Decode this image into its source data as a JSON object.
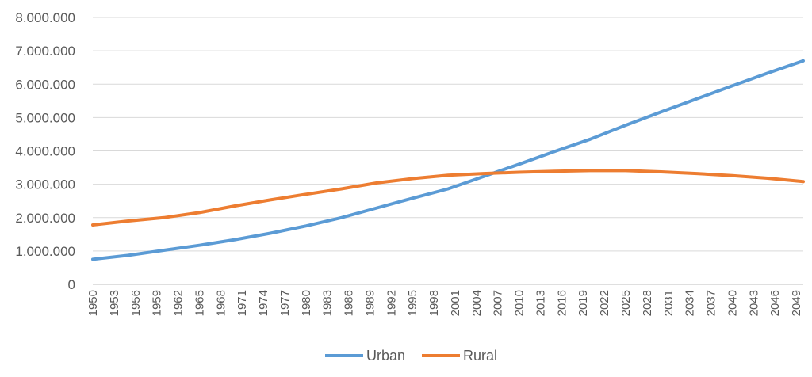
{
  "chart_data": {
    "type": "line",
    "title": "",
    "xlabel": "",
    "ylabel": "",
    "x_start": 1950,
    "x_end": 2050,
    "x_tick_labels": [
      "1950",
      "1953",
      "1956",
      "1959",
      "1962",
      "1965",
      "1968",
      "1971",
      "1974",
      "1977",
      "1980",
      "1983",
      "1986",
      "1989",
      "1992",
      "1995",
      "1998",
      "2001",
      "2004",
      "2007",
      "2010",
      "2013",
      "2016",
      "2019",
      "2022",
      "2025",
      "2028",
      "2031",
      "2034",
      "2037",
      "2040",
      "2043",
      "2046",
      "2049"
    ],
    "y_ticks": [
      0,
      1000000,
      2000000,
      3000000,
      4000000,
      5000000,
      6000000,
      7000000,
      8000000
    ],
    "y_tick_labels": [
      "0",
      "1.000.000",
      "2.000.000",
      "3.000.000",
      "4.000.000",
      "5.000.000",
      "6.000.000",
      "7.000.000",
      "8.000.000"
    ],
    "ylim": [
      0,
      8000000
    ],
    "grid": "horizontal",
    "legend_position": "bottom-center",
    "series": [
      {
        "name": "Urban",
        "color": "#5b9bd5",
        "points": [
          [
            1950,
            750000
          ],
          [
            1955,
            870000
          ],
          [
            1960,
            1020000
          ],
          [
            1965,
            1170000
          ],
          [
            1970,
            1340000
          ],
          [
            1975,
            1530000
          ],
          [
            1980,
            1750000
          ],
          [
            1985,
            2000000
          ],
          [
            1990,
            2290000
          ],
          [
            1995,
            2580000
          ],
          [
            2000,
            2860000
          ],
          [
            2005,
            3230000
          ],
          [
            2010,
            3600000
          ],
          [
            2015,
            3980000
          ],
          [
            2020,
            4350000
          ],
          [
            2025,
            4770000
          ],
          [
            2030,
            5170000
          ],
          [
            2035,
            5560000
          ],
          [
            2040,
            5950000
          ],
          [
            2045,
            6330000
          ],
          [
            2050,
            6700000
          ]
        ]
      },
      {
        "name": "Rural",
        "color": "#ed7d31",
        "points": [
          [
            1950,
            1780000
          ],
          [
            1955,
            1900000
          ],
          [
            1960,
            2000000
          ],
          [
            1965,
            2150000
          ],
          [
            1970,
            2350000
          ],
          [
            1975,
            2530000
          ],
          [
            1980,
            2700000
          ],
          [
            1985,
            2860000
          ],
          [
            1990,
            3040000
          ],
          [
            1995,
            3170000
          ],
          [
            2000,
            3270000
          ],
          [
            2005,
            3320000
          ],
          [
            2010,
            3360000
          ],
          [
            2015,
            3390000
          ],
          [
            2020,
            3410000
          ],
          [
            2025,
            3410000
          ],
          [
            2030,
            3370000
          ],
          [
            2035,
            3320000
          ],
          [
            2040,
            3260000
          ],
          [
            2045,
            3180000
          ],
          [
            2050,
            3080000
          ]
        ]
      }
    ]
  }
}
